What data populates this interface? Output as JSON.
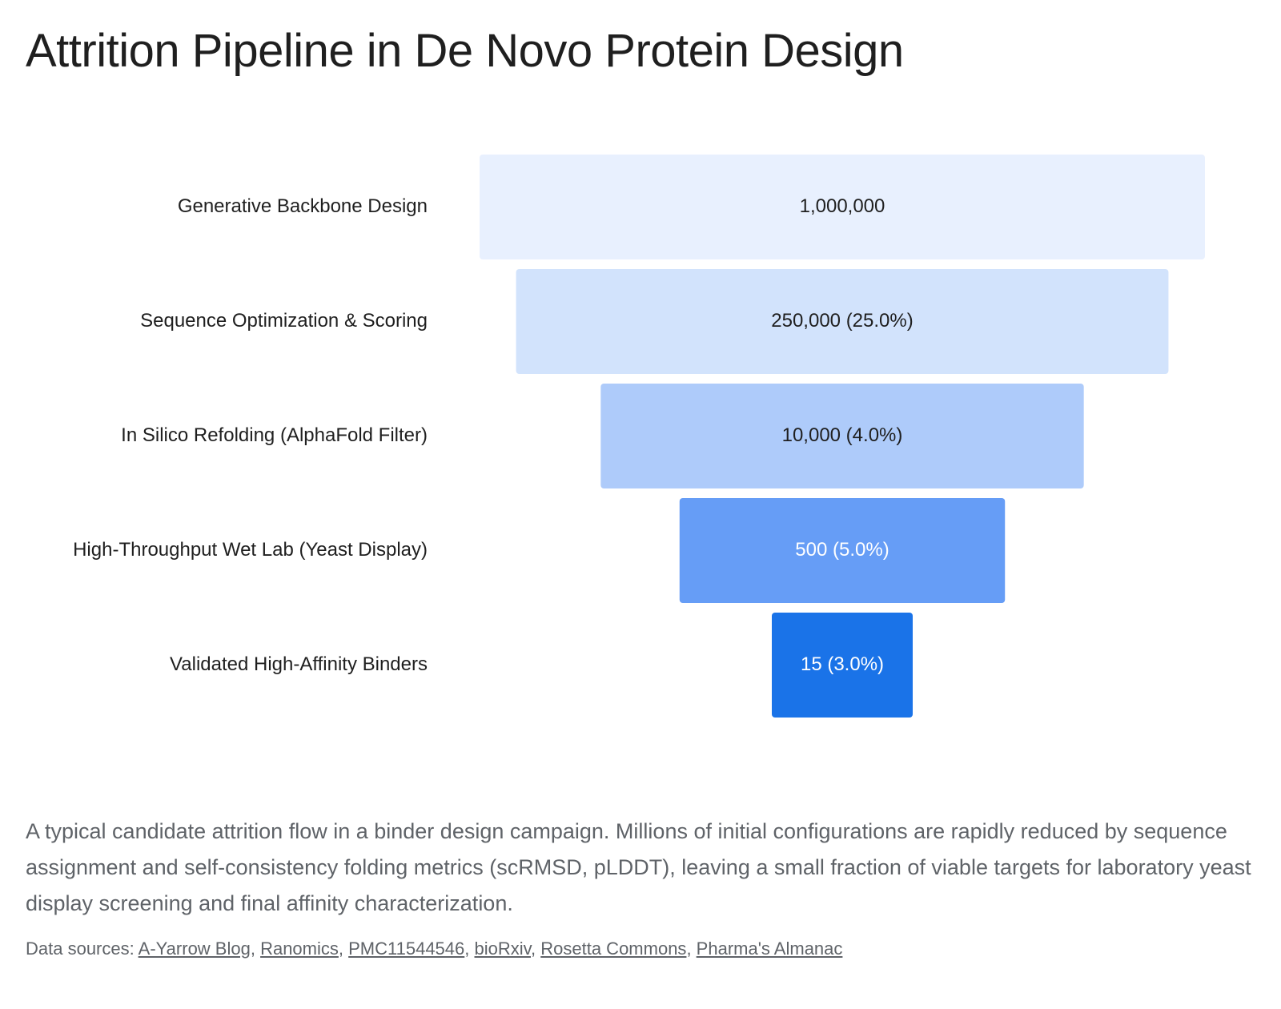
{
  "page": {
    "title": "Attrition Pipeline in De Novo Protein Design",
    "caption": "A typical candidate attrition flow in a binder design campaign. Millions of initial configurations are rapidly reduced by sequence assignment and self-consistency folding metrics (scRMSD, pLDDT), leaving a small fraction of viable targets for laboratory yeast display screening and final affinity characterization.",
    "sources_label": "Data sources:",
    "sources": [
      "A-Yarrow Blog",
      "Ranomics",
      "PMC11544546",
      "bioRxiv",
      "Rosetta Commons",
      "Pharma's Almanac"
    ]
  },
  "chart_data": {
    "type": "funnel",
    "title": "Attrition Pipeline in De Novo Protein Design",
    "categories": [
      "Generative Backbone Design",
      "Sequence Optimization & Scoring",
      "In Silico Refolding (AlphaFold Filter)",
      "High-Throughput Wet Lab (Yeast Display)",
      "Validated High-Affinity Binders"
    ],
    "values": [
      1000000,
      250000,
      10000,
      500,
      15
    ],
    "labels": [
      "1,000,000",
      "250,000 (25.0%)",
      "10,000 (4.0%)",
      "500 (5.0%)",
      "15 (3.0%)"
    ],
    "colors": [
      "#e8f0fe",
      "#d2e3fc",
      "#aecbfa",
      "#669df6",
      "#1a73e8"
    ],
    "label_colors": [
      "#1f1f1f",
      "#1f1f1f",
      "#1f1f1f",
      "#ffffff",
      "#ffffff"
    ],
    "scale": "log"
  }
}
